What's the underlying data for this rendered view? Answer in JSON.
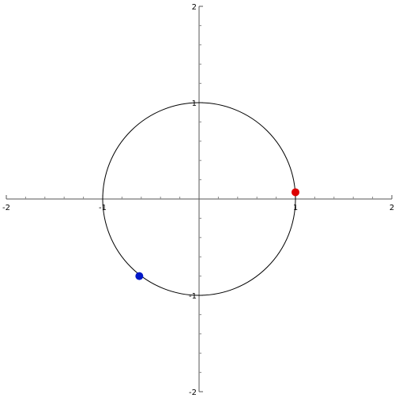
{
  "chart_data": {
    "type": "scatter",
    "xlim": [
      -2,
      2
    ],
    "ylim": [
      -2,
      2
    ],
    "xticks": [
      -2,
      -1,
      1,
      2
    ],
    "yticks": [
      -2,
      -1,
      1,
      2
    ],
    "xminorticks": [
      -1.8,
      -1.6,
      -1.4,
      -1.2,
      -0.8,
      -0.6,
      -0.4,
      -0.2,
      0.2,
      0.4,
      0.6,
      0.8,
      1.2,
      1.4,
      1.6,
      1.8
    ],
    "yminorticks": [
      -1.8,
      -1.6,
      -1.4,
      -1.2,
      -0.8,
      -0.6,
      -0.4,
      -0.2,
      0.2,
      0.4,
      0.6,
      0.8,
      1.2,
      1.4,
      1.6,
      1.8
    ],
    "curves": [
      {
        "type": "circle",
        "center": [
          0,
          0
        ],
        "radius": 1,
        "color": "#000000"
      }
    ],
    "series": [
      {
        "color": "#dd0000",
        "x": [
          1
        ],
        "values": [
          0.07
        ]
      },
      {
        "color": "#0018c8",
        "x": [
          -0.62
        ],
        "values": [
          -0.8
        ]
      }
    ]
  }
}
